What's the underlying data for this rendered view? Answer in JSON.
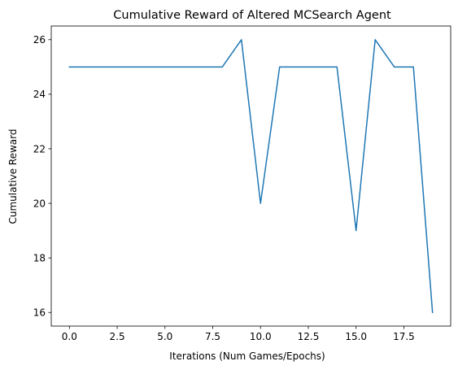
{
  "chart_data": {
    "type": "line",
    "title": "Cumulative Reward of Altered MCSearch Agent",
    "xlabel": "Iterations (Num Games/Epochs)",
    "ylabel": "Cumulative Reward",
    "xlim": [
      -0.95,
      19.95
    ],
    "ylim": [
      15.5,
      26.5
    ],
    "xticks": [
      0.0,
      2.5,
      5.0,
      7.5,
      10.0,
      12.5,
      15.0,
      17.5
    ],
    "xtick_labels": [
      "0.0",
      "2.5",
      "5.0",
      "7.5",
      "10.0",
      "12.5",
      "15.0",
      "17.5"
    ],
    "yticks": [
      16,
      18,
      20,
      22,
      24,
      26
    ],
    "ytick_labels": [
      "16",
      "18",
      "20",
      "22",
      "24",
      "26"
    ],
    "grid": false,
    "series": [
      {
        "color": "#1f77b4",
        "x": [
          0,
          1,
          2,
          3,
          4,
          5,
          6,
          7,
          8,
          9,
          10,
          11,
          12,
          13,
          14,
          15,
          16,
          17,
          18,
          19
        ],
        "y": [
          25,
          25,
          25,
          25,
          25,
          25,
          25,
          25,
          25,
          26,
          20,
          25,
          25,
          25,
          25,
          19,
          26,
          25,
          25,
          16
        ]
      }
    ]
  }
}
